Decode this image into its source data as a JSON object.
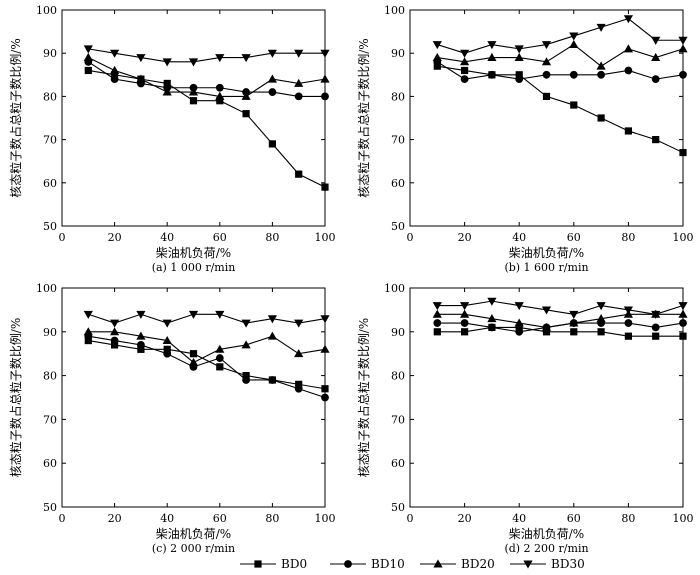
{
  "chart_data": [
    {
      "type": "line",
      "caption": "(a)  1 000 r/min",
      "xlabel": "柴油机负荷/%",
      "ylabel": "核态粒子数占总粒子数比例/%",
      "xlim": [
        0,
        100
      ],
      "ylim": [
        50,
        100
      ],
      "xticks": [
        0,
        20,
        40,
        60,
        80,
        100
      ],
      "yticks": [
        50,
        60,
        70,
        80,
        90,
        100
      ],
      "x": [
        10,
        20,
        30,
        40,
        50,
        60,
        70,
        80,
        90,
        100
      ],
      "series": [
        {
          "name": "BD0",
          "marker": "square",
          "values": [
            86,
            85,
            84,
            83,
            79,
            79,
            76,
            69,
            62,
            59
          ]
        },
        {
          "name": "BD10",
          "marker": "circle",
          "values": [
            88,
            84,
            83,
            82,
            82,
            82,
            81,
            81,
            80,
            80
          ]
        },
        {
          "name": "BD20",
          "marker": "triangle-up",
          "values": [
            89,
            86,
            84,
            81,
            81,
            80,
            80,
            84,
            83,
            84
          ]
        },
        {
          "name": "BD30",
          "marker": "triangle-down",
          "values": [
            91,
            90,
            89,
            88,
            88,
            89,
            89,
            90,
            90,
            90
          ]
        }
      ]
    },
    {
      "type": "line",
      "caption": "(b)  1 600 r/min",
      "xlabel": "柴油机负荷/%",
      "ylabel": "核态粒子数占总粒子数比例/%",
      "xlim": [
        0,
        100
      ],
      "ylim": [
        50,
        100
      ],
      "xticks": [
        0,
        20,
        40,
        60,
        80,
        100
      ],
      "yticks": [
        50,
        60,
        70,
        80,
        90,
        100
      ],
      "x": [
        10,
        20,
        30,
        40,
        50,
        60,
        70,
        80,
        90,
        100
      ],
      "series": [
        {
          "name": "BD0",
          "marker": "square",
          "values": [
            87,
            86,
            85,
            85,
            80,
            78,
            75,
            72,
            70,
            67
          ]
        },
        {
          "name": "BD10",
          "marker": "circle",
          "values": [
            88,
            84,
            85,
            84,
            85,
            85,
            85,
            86,
            84,
            85
          ]
        },
        {
          "name": "BD20",
          "marker": "triangle-up",
          "values": [
            89,
            88,
            89,
            89,
            88,
            92,
            87,
            91,
            89,
            91
          ]
        },
        {
          "name": "BD30",
          "marker": "triangle-down",
          "values": [
            92,
            90,
            92,
            91,
            92,
            94,
            96,
            98,
            93,
            93
          ]
        }
      ]
    },
    {
      "type": "line",
      "caption": "(c)  2 000 r/min",
      "xlabel": "柴油机负荷/%",
      "ylabel": "核态粒子数占总粒子数比例/%",
      "xlim": [
        0,
        100
      ],
      "ylim": [
        50,
        100
      ],
      "xticks": [
        0,
        20,
        40,
        60,
        80,
        100
      ],
      "yticks": [
        50,
        60,
        70,
        80,
        90,
        100
      ],
      "x": [
        10,
        20,
        30,
        40,
        50,
        60,
        70,
        80,
        90,
        100
      ],
      "series": [
        {
          "name": "BD0",
          "marker": "square",
          "values": [
            88,
            87,
            86,
            86,
            85,
            82,
            80,
            79,
            78,
            77
          ]
        },
        {
          "name": "BD10",
          "marker": "circle",
          "values": [
            89,
            88,
            87,
            85,
            82,
            84,
            79,
            79,
            77,
            75
          ]
        },
        {
          "name": "BD20",
          "marker": "triangle-up",
          "values": [
            90,
            90,
            89,
            88,
            83,
            86,
            87,
            89,
            85,
            86
          ]
        },
        {
          "name": "BD30",
          "marker": "triangle-down",
          "values": [
            94,
            92,
            94,
            92,
            94,
            94,
            92,
            93,
            92,
            93
          ]
        }
      ]
    },
    {
      "type": "line",
      "caption": "(d)  2 200 r/min",
      "xlabel": "柴油机负荷/%",
      "ylabel": "核态粒子数占总粒子数比例/%",
      "xlim": [
        0,
        100
      ],
      "ylim": [
        50,
        100
      ],
      "xticks": [
        0,
        20,
        40,
        60,
        80,
        100
      ],
      "yticks": [
        50,
        60,
        70,
        80,
        90,
        100
      ],
      "x": [
        10,
        20,
        30,
        40,
        50,
        60,
        70,
        80,
        90,
        100
      ],
      "series": [
        {
          "name": "BD0",
          "marker": "square",
          "values": [
            90,
            90,
            91,
            91,
            90,
            90,
            90,
            89,
            89,
            89
          ]
        },
        {
          "name": "BD10",
          "marker": "circle",
          "values": [
            92,
            92,
            91,
            90,
            91,
            92,
            92,
            92,
            91,
            92
          ]
        },
        {
          "name": "BD20",
          "marker": "triangle-up",
          "values": [
            94,
            94,
            93,
            92,
            91,
            92,
            93,
            94,
            94,
            94
          ]
        },
        {
          "name": "BD30",
          "marker": "triangle-down",
          "values": [
            96,
            96,
            97,
            96,
            95,
            94,
            96,
            95,
            94,
            96
          ]
        }
      ]
    }
  ],
  "legend": {
    "placement": "bottom-center",
    "items": [
      {
        "label": "BD0",
        "marker": "square"
      },
      {
        "label": "BD10",
        "marker": "circle"
      },
      {
        "label": "BD20",
        "marker": "triangle-up"
      },
      {
        "label": "BD30",
        "marker": "triangle-down"
      }
    ]
  },
  "colors": {
    "line": "#000000",
    "background": "#ffffff"
  }
}
